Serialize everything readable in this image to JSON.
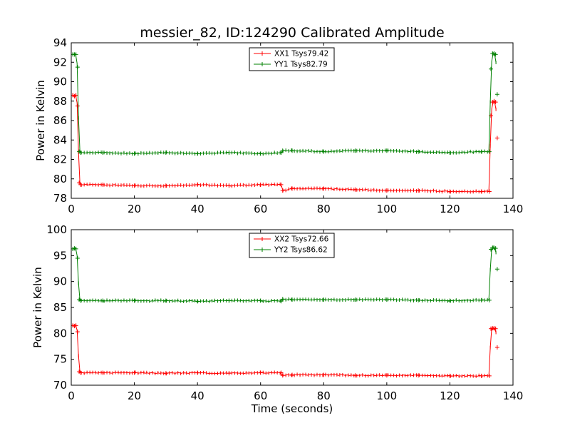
{
  "chart_data": [
    {
      "type": "line",
      "title": "messier_82, ID:124290 Calibrated Amplitude",
      "xlabel": "",
      "ylabel": "Power in Kelvin",
      "xlim": [
        0,
        140
      ],
      "ylim": [
        78,
        94
      ],
      "xticks": [
        0,
        20,
        40,
        60,
        80,
        100,
        120,
        140
      ],
      "yticks": [
        78,
        80,
        82,
        84,
        86,
        88,
        90,
        92,
        94
      ],
      "grid": false,
      "legend_position": "top-center",
      "series": [
        {
          "name": "XX1 Tsys79.42",
          "color": "#ff0000",
          "x": [
            0.5,
            1.0,
            1.5,
            2.0,
            2.5,
            3,
            10,
            20,
            30,
            40,
            50,
            60,
            66.5,
            67,
            70,
            80,
            90,
            100,
            110,
            120,
            130,
            132.5,
            133,
            133.5,
            134,
            134.5,
            135
          ],
          "y": [
            88.6,
            88.5,
            88.6,
            87.5,
            79.6,
            79.4,
            79.4,
            79.3,
            79.3,
            79.4,
            79.3,
            79.4,
            79.4,
            78.8,
            79.0,
            79.0,
            78.9,
            78.8,
            78.8,
            78.7,
            78.7,
            78.7,
            86.5,
            87.9,
            88.0,
            87.9,
            84.2
          ]
        },
        {
          "name": "YY1 Tsys82.79",
          "color": "#008000",
          "x": [
            0.5,
            1.0,
            1.5,
            2.0,
            2.5,
            3,
            10,
            20,
            30,
            40,
            50,
            60,
            66.5,
            67,
            70,
            80,
            90,
            100,
            110,
            120,
            130,
            132.5,
            133,
            133.5,
            134,
            134.5,
            135
          ],
          "y": [
            92.8,
            92.8,
            92.8,
            91.5,
            82.8,
            82.7,
            82.7,
            82.6,
            82.7,
            82.6,
            82.7,
            82.6,
            82.7,
            82.9,
            82.9,
            82.8,
            82.9,
            82.9,
            82.8,
            82.7,
            82.8,
            82.8,
            91.3,
            92.9,
            92.9,
            92.8,
            88.7
          ]
        }
      ]
    },
    {
      "type": "line",
      "title": "",
      "xlabel": "Time (seconds)",
      "ylabel": "Power in Kelvin",
      "xlim": [
        0,
        140
      ],
      "ylim": [
        70,
        100
      ],
      "xticks": [
        0,
        20,
        40,
        60,
        80,
        100,
        120,
        140
      ],
      "yticks": [
        70,
        75,
        80,
        85,
        90,
        95,
        100
      ],
      "grid": false,
      "legend_position": "top-center",
      "series": [
        {
          "name": "XX2 Tsys72.66",
          "color": "#ff0000",
          "x": [
            0.5,
            1.0,
            1.5,
            2.0,
            2.5,
            3,
            10,
            20,
            30,
            40,
            50,
            60,
            66.5,
            67,
            70,
            80,
            90,
            100,
            110,
            120,
            130,
            132.5,
            133,
            133.5,
            134,
            134.5,
            135
          ],
          "y": [
            81.5,
            81.4,
            81.5,
            80.3,
            72.6,
            72.4,
            72.4,
            72.4,
            72.3,
            72.4,
            72.3,
            72.4,
            72.4,
            71.9,
            72.0,
            72.0,
            71.9,
            71.9,
            71.9,
            71.8,
            71.8,
            71.8,
            80.9,
            81.0,
            81.0,
            80.9,
            77.3
          ]
        },
        {
          "name": "YY2 Tsys86.62",
          "color": "#008000",
          "x": [
            0.5,
            1.0,
            1.5,
            2.0,
            2.5,
            3,
            10,
            20,
            30,
            40,
            50,
            60,
            66.5,
            67,
            70,
            80,
            90,
            100,
            110,
            120,
            130,
            132.5,
            133,
            133.5,
            134,
            134.5,
            135
          ],
          "y": [
            96.3,
            96.4,
            96.3,
            94.5,
            86.5,
            86.3,
            86.3,
            86.3,
            86.3,
            86.2,
            86.3,
            86.3,
            86.2,
            86.6,
            86.5,
            86.5,
            86.5,
            86.5,
            86.4,
            86.3,
            86.4,
            86.4,
            96.2,
            96.5,
            96.5,
            96.4,
            92.4
          ]
        }
      ]
    }
  ]
}
